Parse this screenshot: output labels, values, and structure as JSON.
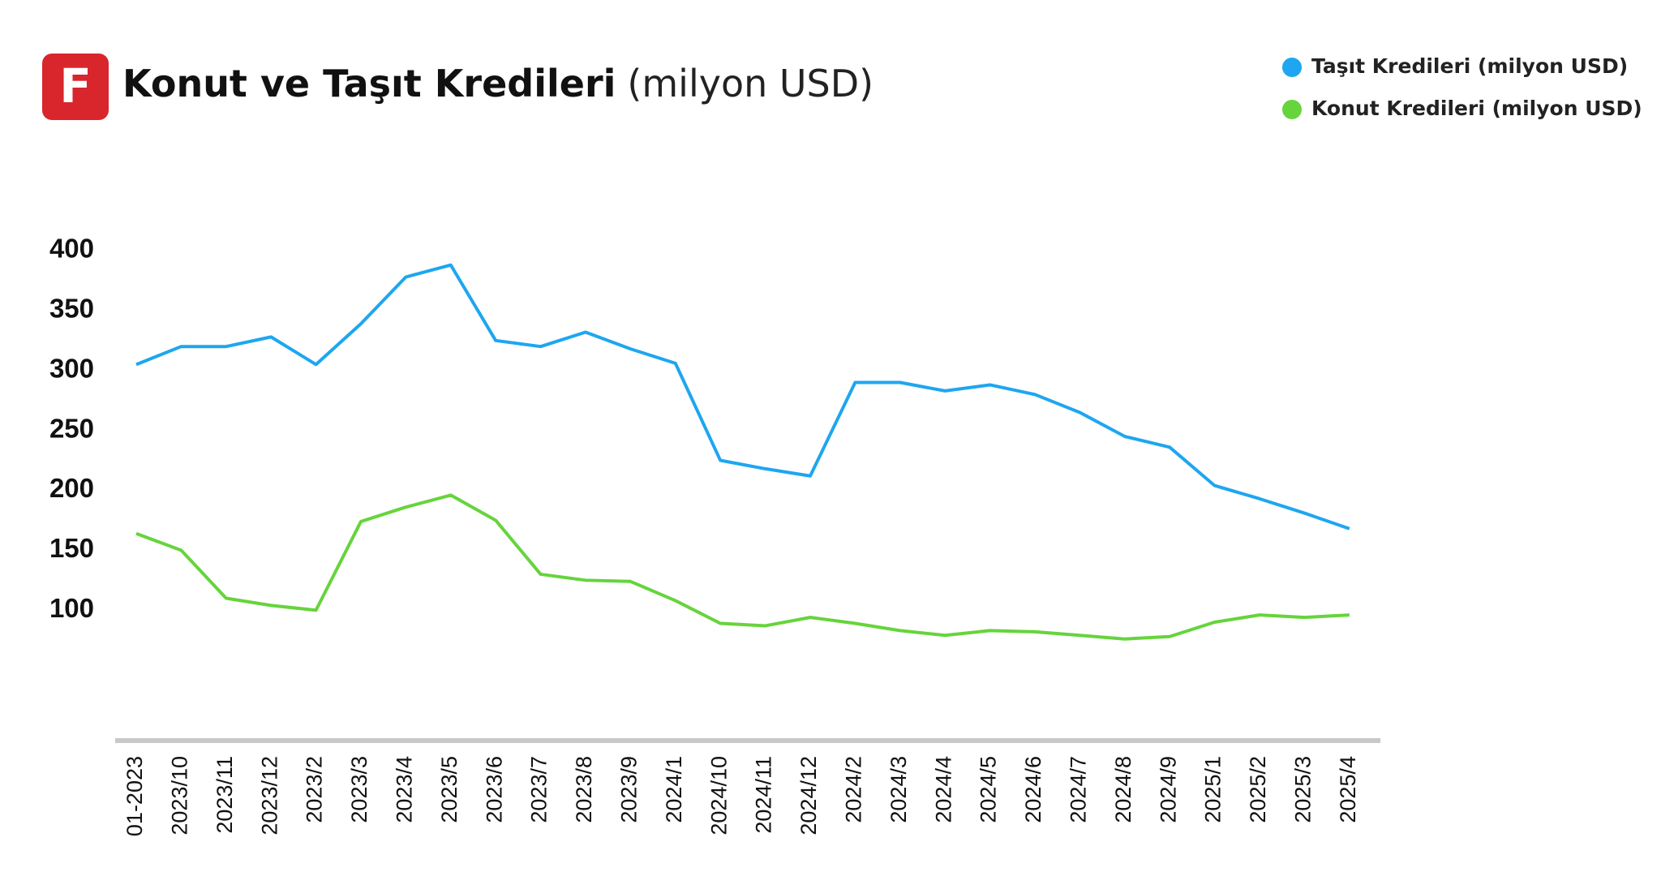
{
  "logo_text": "F",
  "chart_data": {
    "type": "line",
    "title": "Konut ve Taşıt Kredileri",
    "subtitle": "(milyon USD)",
    "categories": [
      "01-2023",
      "2023/10",
      "2023/11",
      "2023/12",
      "2023/2",
      "2023/3",
      "2023/4",
      "2023/5",
      "2023/6",
      "2023/7",
      "2023/8",
      "2023/9",
      "2024/1",
      "2024/10",
      "2024/11",
      "2024/12",
      "2024/2",
      "2024/3",
      "2024/4",
      "2024/5",
      "2024/6",
      "2024/7",
      "2024/8",
      "2024/9",
      "2025/1",
      "2025/2",
      "2025/3",
      "2025/4"
    ],
    "series": [
      {
        "name": "Taşıt Kredileri (milyon USD)",
        "color": "#1ea6f0",
        "values": [
          305,
          320,
          320,
          328,
          305,
          339,
          378,
          388,
          325,
          320,
          332,
          318,
          306,
          225,
          218,
          212,
          290,
          290,
          283,
          288,
          280,
          265,
          245,
          236,
          204,
          193,
          181,
          168
        ]
      },
      {
        "name": "Konut Kredileri (milyon USD)",
        "color": "#66d43c",
        "values": [
          164,
          150,
          110,
          104,
          100,
          174,
          186,
          196,
          175,
          130,
          125,
          124,
          108,
          89,
          87,
          94,
          89,
          83,
          79,
          83,
          82,
          79,
          76,
          78,
          90,
          96,
          94,
          96
        ]
      }
    ],
    "ylim": [
      0,
      400
    ],
    "yticks": [
      100,
      150,
      200,
      250,
      300,
      350,
      400
    ],
    "grid": false,
    "legend": "top-right"
  }
}
